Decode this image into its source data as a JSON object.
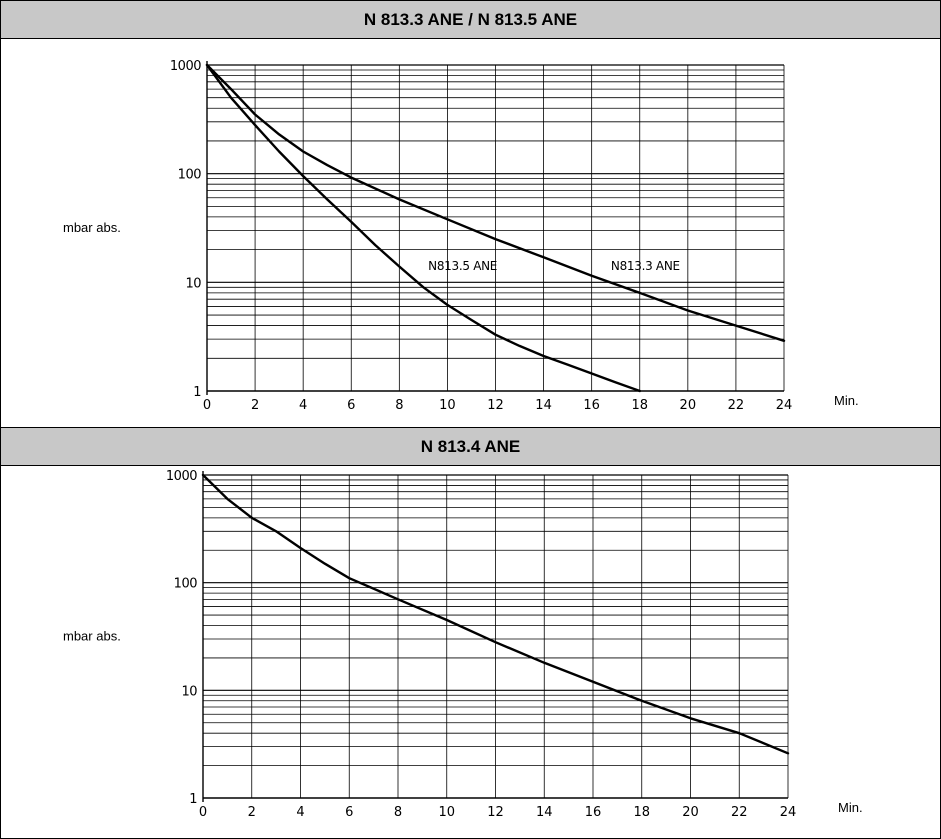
{
  "chart_data": [
    {
      "type": "line",
      "title": "N 813.3 ANE / N 813.5 ANE",
      "xlabel": "Min.",
      "ylabel": "mbar abs.",
      "xlim": [
        0,
        24
      ],
      "ylim": [
        1,
        1000
      ],
      "yscale": "log",
      "x_ticks": [
        "0",
        "2",
        "4",
        "6",
        "8",
        "10",
        "12",
        "14",
        "16",
        "18",
        "20",
        "22",
        "24"
      ],
      "y_ticks": [
        "1000",
        "100",
        "10",
        "1"
      ],
      "grid": true,
      "series": [
        {
          "name": "N813.5 ANE",
          "x": [
            0,
            1,
            2,
            3,
            4,
            5,
            6,
            7,
            8,
            9,
            10,
            11,
            12,
            13,
            14,
            15,
            16,
            17,
            18
          ],
          "y": [
            1000,
            500,
            280,
            160,
            95,
            58,
            36,
            22,
            14,
            9,
            6.2,
            4.5,
            3.3,
            2.6,
            2.1,
            1.75,
            1.45,
            1.2,
            1.0
          ]
        },
        {
          "name": "N813.3 ANE",
          "x": [
            0,
            1,
            2,
            3,
            4,
            5,
            6,
            8,
            10,
            12,
            14,
            16,
            18,
            20,
            22,
            24
          ],
          "y": [
            1000,
            600,
            350,
            230,
            160,
            120,
            92,
            58,
            38,
            25,
            17,
            11.5,
            8,
            5.5,
            4,
            2.9
          ]
        }
      ]
    },
    {
      "type": "line",
      "title": "N 813.4 ANE",
      "xlabel": "Min.",
      "ylabel": "mbar abs.",
      "xlim": [
        0,
        24
      ],
      "ylim": [
        1,
        1000
      ],
      "yscale": "log",
      "x_ticks": [
        "0",
        "2",
        "4",
        "6",
        "8",
        "10",
        "12",
        "14",
        "16",
        "18",
        "20",
        "22",
        "24"
      ],
      "y_ticks": [
        "1000",
        "100",
        "10",
        "1"
      ],
      "grid": true,
      "series": [
        {
          "name": "",
          "x": [
            0,
            1,
            2,
            3,
            4,
            5,
            6,
            8,
            10,
            12,
            14,
            16,
            18,
            20,
            22,
            24
          ],
          "y": [
            1000,
            600,
            400,
            300,
            210,
            150,
            110,
            70,
            45,
            28,
            18,
            12,
            8,
            5.5,
            4,
            2.6
          ]
        }
      ]
    }
  ]
}
